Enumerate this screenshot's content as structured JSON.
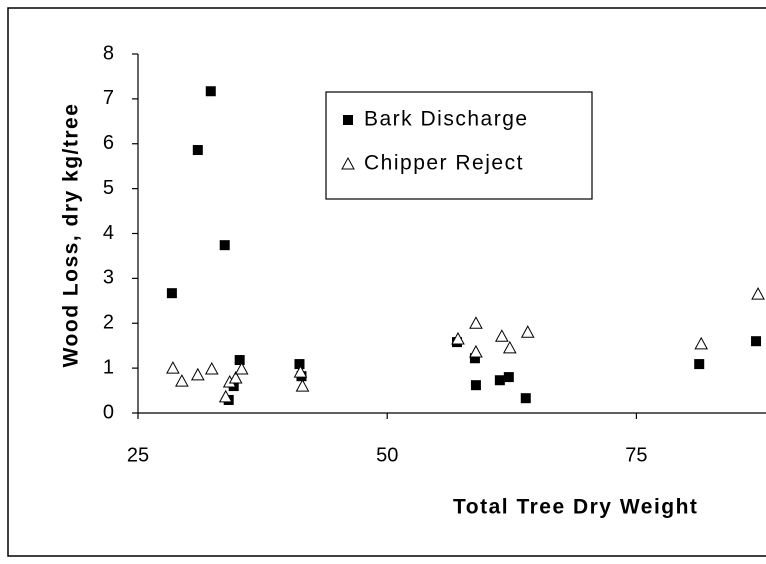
{
  "chart_data": {
    "type": "scatter",
    "x_label": "Total Tree Dry Weight",
    "y_label": "Wood Loss, dry kg/tree",
    "xlim": [
      25,
      88
    ],
    "xticks": [
      25,
      50,
      75
    ],
    "ylim": [
      0,
      8
    ],
    "yticks": [
      0,
      1,
      2,
      3,
      4,
      5,
      6,
      7,
      8
    ],
    "legend": "top-center",
    "series": [
      {
        "name": "Bark Discharge",
        "color": "#000000",
        "marker": "square",
        "x": [
          28.4,
          31.0,
          32.3,
          33.7,
          34.1,
          34.6,
          35.2,
          41.2,
          41.4,
          57.0,
          58.8,
          58.9,
          61.3,
          62.2,
          63.9,
          81.3,
          87.0
        ],
        "values": [
          2.67,
          5.86,
          7.17,
          3.74,
          0.29,
          0.6,
          1.18,
          1.09,
          0.82,
          1.58,
          1.22,
          0.62,
          0.73,
          0.8,
          0.33,
          1.09,
          1.6
        ]
      },
      {
        "name": "Chipper Reject",
        "color": "#000000",
        "marker": "triangle",
        "x": [
          28.5,
          29.4,
          31.0,
          32.4,
          33.8,
          34.2,
          34.8,
          35.4,
          41.3,
          41.5,
          57.1,
          58.9,
          58.9,
          61.5,
          62.3,
          64.1,
          81.5,
          87.2
        ],
        "values": [
          1.0,
          0.71,
          0.85,
          0.98,
          0.36,
          0.69,
          0.78,
          0.98,
          0.91,
          0.6,
          1.65,
          2.0,
          1.36,
          1.71,
          1.45,
          1.8,
          1.54,
          2.65
        ]
      }
    ]
  }
}
